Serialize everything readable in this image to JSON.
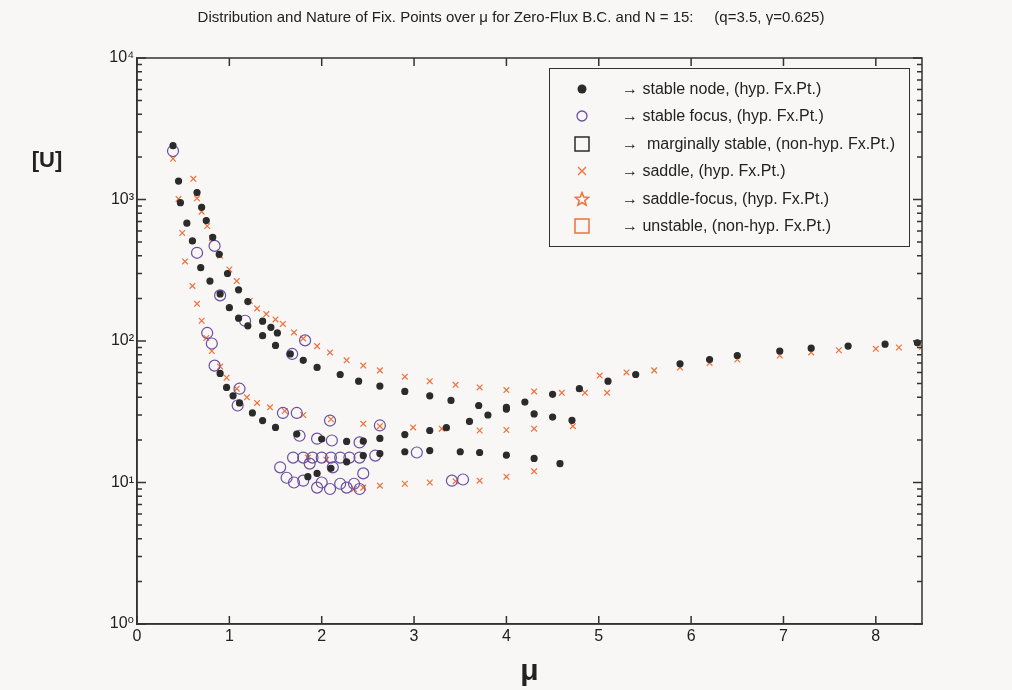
{
  "chart_data": {
    "type": "scatter",
    "title": "Distribution and Nature of Fix. Points over μ for Zero-Flux B.C. and N = 15:     (q=3.5, γ=0.625)",
    "xlabel": "μ",
    "ylabel": "[U]",
    "log": "y",
    "grid": false,
    "legend": "top right",
    "xlim": [
      0,
      8.5
    ],
    "xticks": [
      0,
      1,
      2,
      3,
      4,
      5,
      6,
      7,
      8
    ],
    "ylim": [
      1,
      10000
    ],
    "yticks": [
      {
        "value": 1,
        "label": "10⁰"
      },
      {
        "value": 2,
        "label": null
      },
      {
        "value": 3,
        "label": null
      },
      {
        "value": 4,
        "label": null
      },
      {
        "value": 5,
        "label": null
      },
      {
        "value": 6,
        "label": null
      },
      {
        "value": 7,
        "label": null
      },
      {
        "value": 8,
        "label": null
      },
      {
        "value": 9,
        "label": null
      },
      {
        "value": 10,
        "label": "10¹"
      },
      {
        "value": 20,
        "label": null
      },
      {
        "value": 30,
        "label": null
      },
      {
        "value": 40,
        "label": null
      },
      {
        "value": 50,
        "label": null
      },
      {
        "value": 60,
        "label": null
      },
      {
        "value": 70,
        "label": null
      },
      {
        "value": 80,
        "label": null
      },
      {
        "value": 90,
        "label": null
      },
      {
        "value": 100,
        "label": "10²"
      },
      {
        "value": 200,
        "label": null
      },
      {
        "value": 300,
        "label": null
      },
      {
        "value": 400,
        "label": null
      },
      {
        "value": 500,
        "label": null
      },
      {
        "value": 600,
        "label": null
      },
      {
        "value": 700,
        "label": null
      },
      {
        "value": 800,
        "label": null
      },
      {
        "value": 900,
        "label": null
      },
      {
        "value": 1000,
        "label": "10³"
      },
      {
        "value": 2000,
        "label": null
      },
      {
        "value": 3000,
        "label": null
      },
      {
        "value": 4000,
        "label": null
      },
      {
        "value": 5000,
        "label": null
      },
      {
        "value": 6000,
        "label": null
      },
      {
        "value": 7000,
        "label": null
      },
      {
        "value": 8000,
        "label": null
      },
      {
        "value": 9000,
        "label": null
      },
      {
        "value": 10000,
        "label": "10⁴"
      }
    ],
    "series": [
      {
        "name": "→ stable node, (hyp. Fx.Pt.)",
        "color": "#2b2b2b",
        "marker": "point",
        "x": [
          0.39,
          0.45,
          0.47,
          0.54,
          0.6,
          0.69,
          0.79,
          0.9,
          1.0,
          1.1,
          1.2,
          1.36,
          1.5,
          1.66,
          1.8,
          1.95,
          2.2,
          2.4,
          2.63,
          2.9,
          3.17,
          3.4,
          3.7,
          4.0,
          4.3,
          4.5,
          4.71,
          0.65,
          0.7,
          0.75,
          0.82,
          0.89,
          0.98,
          1.1,
          1.2,
          1.36,
          1.45,
          1.52,
          0.9,
          0.97,
          1.04,
          1.11,
          1.25,
          1.36,
          1.5,
          1.73,
          2.0,
          2.27,
          2.45,
          2.63,
          2.9,
          3.17,
          3.35,
          3.6,
          3.8,
          4.0,
          4.2,
          4.5,
          4.79,
          5.1,
          5.4,
          5.88,
          6.2,
          6.5,
          6.96,
          7.3,
          7.7,
          8.1,
          8.45,
          1.85,
          1.95,
          2.1,
          2.27,
          2.45,
          2.63,
          2.9,
          3.17,
          3.5,
          3.71,
          4.0,
          4.3,
          4.58
        ],
        "values": [
          2400,
          1350,
          950,
          680,
          510,
          330,
          265,
          215,
          172,
          145,
          128,
          109,
          93,
          81,
          73,
          65,
          58,
          52,
          48,
          44,
          41,
          38,
          35,
          33,
          30.5,
          29,
          27.5,
          1120,
          880,
          710,
          540,
          410,
          300,
          230,
          190,
          138,
          125,
          114,
          59,
          47,
          41,
          36.5,
          31,
          27.4,
          24.5,
          22,
          20.3,
          19.5,
          19.6,
          20.5,
          21.8,
          23.3,
          24.4,
          27,
          30,
          34,
          37,
          42,
          46,
          52,
          58,
          69,
          74,
          79,
          85,
          89,
          92,
          95,
          97,
          11,
          11.6,
          12.6,
          14,
          15.5,
          16,
          16.5,
          16.8,
          16.5,
          16.3,
          15.6,
          14.8,
          13.6
        ]
      },
      {
        "name": "→ stable focus, (hyp. Fx.Pt.)",
        "color": "#6b4fa0",
        "marker": "circle",
        "x": [
          0.39,
          0.65,
          0.84,
          0.9,
          1.17,
          1.68,
          1.82,
          0.76,
          0.81,
          0.84,
          1.09,
          1.11,
          1.58,
          1.73,
          2.09,
          2.63,
          1.76,
          1.95,
          2.11,
          2.41,
          3.03,
          2.58,
          1.69,
          1.8,
          1.9,
          2.0,
          2.1,
          2.2,
          2.3,
          2.41,
          1.55,
          1.62,
          1.7,
          1.8,
          1.87,
          1.95,
          2.0,
          2.09,
          2.12,
          2.2,
          2.27,
          2.35,
          2.41,
          2.45,
          3.41,
          3.53
        ],
        "values": [
          2200,
          420,
          470,
          210,
          139,
          81,
          101,
          114,
          96,
          67,
          35,
          46,
          31,
          31,
          27.4,
          25.3,
          21.4,
          20.4,
          19.8,
          19.2,
          16.3,
          15.5,
          15,
          15,
          15,
          15,
          15,
          15,
          15,
          15,
          12.8,
          10.8,
          10,
          10.3,
          13.6,
          9.2,
          10,
          9,
          12.8,
          9.8,
          9.2,
          9.8,
          9,
          11.6,
          10.3,
          10.5
        ]
      },
      {
        "name": "→  marginally stable, (non-hyp. Fx.Pt.)",
        "color": "#2b2b2b",
        "marker": "square"
      },
      {
        "name": "→ saddle, (hyp. Fx.Pt.)",
        "color": "#f0703a",
        "marker": "cross",
        "x": [
          0.61,
          0.65,
          0.7,
          0.76,
          0.81,
          0.9,
          1.0,
          1.08,
          1.22,
          1.3,
          1.4,
          1.5,
          1.58,
          1.7,
          1.8,
          1.95,
          2.09,
          2.27,
          2.45,
          2.63,
          2.9,
          3.17,
          3.45,
          3.71,
          4.0,
          4.3,
          4.6,
          4.85,
          5.09,
          0.39,
          0.45,
          0.49,
          0.52,
          0.6,
          0.65,
          0.7,
          0.75,
          0.81,
          0.9,
          0.97,
          1.08,
          1.19,
          1.3,
          1.44,
          1.6,
          1.8,
          2.1,
          2.45,
          2.63,
          2.99,
          3.3,
          3.71,
          4.0,
          4.3,
          4.72,
          2.35,
          2.45,
          2.63,
          2.9,
          3.17,
          3.45,
          3.71,
          4.0,
          4.3,
          4.58,
          5.01,
          5.3,
          5.6,
          5.88,
          6.2,
          6.5,
          6.96,
          7.3,
          7.6,
          8.0,
          8.25,
          8.5,
          1.85,
          2.05
        ],
        "values": [
          1400,
          1020,
          820,
          650,
          535,
          400,
          320,
          265,
          192,
          170,
          155,
          142,
          132,
          115,
          104,
          92,
          83,
          73,
          67,
          62,
          56,
          52,
          49,
          47,
          45,
          44,
          43,
          43,
          43,
          1940,
          1010,
          580,
          365,
          245,
          183,
          139,
          105,
          85,
          66,
          55,
          46,
          40,
          36.5,
          34,
          32,
          30,
          28,
          26,
          25,
          24.5,
          24,
          23.3,
          23.5,
          24,
          25,
          9,
          9.2,
          9.5,
          9.8,
          10,
          10.2,
          10.3,
          11,
          12,
          13.6,
          57,
          60,
          62,
          65,
          70,
          74,
          79,
          83,
          86,
          88,
          90,
          91,
          15,
          14.5
        ]
      },
      {
        "name": "→ saddle-focus, (hyp. Fx.Pt.)",
        "color": "#f0703a",
        "marker": "star"
      },
      {
        "name": "→ unstable, (non-hyp. Fx.Pt.)",
        "color": "#f0703a",
        "marker": "square"
      }
    ]
  }
}
